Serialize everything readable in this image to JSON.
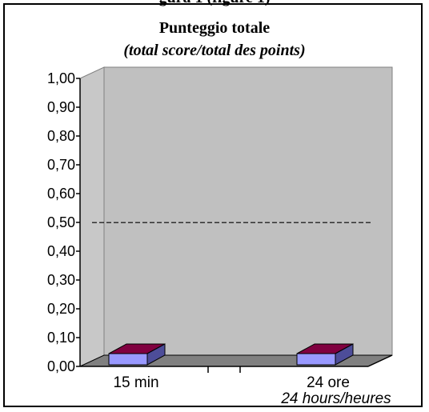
{
  "header": {
    "cut_title": "gura 1 (figure 1)"
  },
  "chart_data": {
    "type": "bar",
    "title": "Punteggio totale",
    "subtitle": "(total score/total des points)",
    "categories": [
      "15 min",
      "24 ore"
    ],
    "category_sublabels": [
      "",
      "24 hours/heures"
    ],
    "series": [
      {
        "values": [
          0.0,
          0.0
        ]
      }
    ],
    "reference_line": 0.48,
    "yticks": [
      "0,00",
      "0,10",
      "0,20",
      "0,30",
      "0,40",
      "0,50",
      "0,60",
      "0,70",
      "0,80",
      "0,90",
      "1,00"
    ],
    "ylim": [
      0,
      1
    ],
    "colors": {
      "wall": "#c0c0c0",
      "side_wall": "#c8c8c8",
      "floor": "#808080",
      "bar_front": "#9999ff",
      "bar_top": "#800040",
      "bar_side": "#4d4d99"
    }
  }
}
